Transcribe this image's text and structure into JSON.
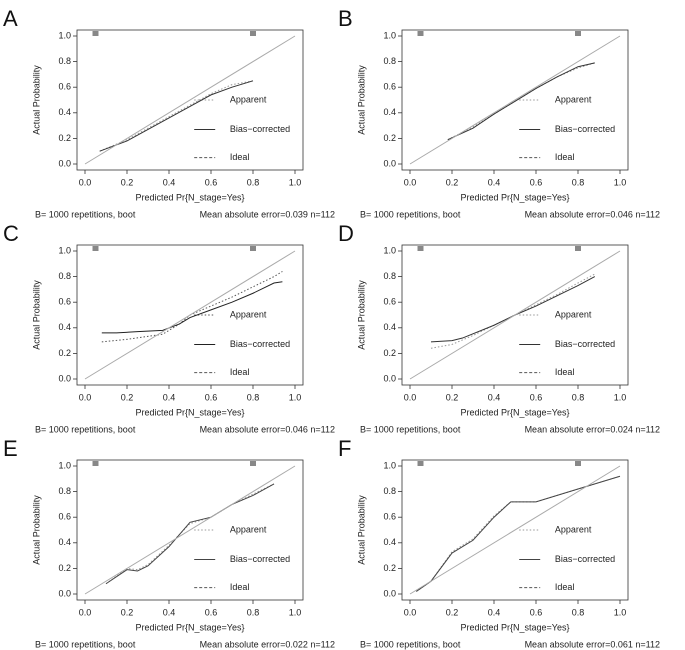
{
  "chart_data": [
    {
      "type": "line",
      "panel": "A",
      "xlabel": "Predicted Pr{N_stage=Yes}",
      "ylabel": "Actual Probability",
      "xlim": [
        0,
        1
      ],
      "ylim": [
        0,
        1
      ],
      "xticks": [
        {
          "value": 0,
          "label": "0.0"
        },
        0.2,
        0.4,
        0.6,
        0.8,
        {
          "value": 1,
          "label": "1.0"
        }
      ],
      "yticks": [
        {
          "value": 0,
          "label": "0.0"
        },
        0.2,
        0.4,
        0.6,
        0.8,
        {
          "value": 1,
          "label": "1.0"
        }
      ],
      "rug": [
        0.05,
        0.8
      ],
      "series": [
        {
          "name": "Apparent",
          "color": "#999999",
          "dash": "dotted",
          "x": [
            0.07,
            0.2,
            0.3,
            0.4,
            0.5,
            0.6,
            0.7,
            0.8
          ],
          "values": [
            0.1,
            0.19,
            0.28,
            0.37,
            0.46,
            0.55,
            0.62,
            0.65
          ]
        },
        {
          "name": "Bias−corrected",
          "color": "#333333",
          "dash": "solid",
          "x": [
            0.07,
            0.2,
            0.3,
            0.4,
            0.5,
            0.6,
            0.7,
            0.8
          ],
          "values": [
            0.1,
            0.18,
            0.27,
            0.36,
            0.45,
            0.54,
            0.6,
            0.65
          ]
        },
        {
          "name": "Ideal",
          "color": "#555555",
          "dash": "dashed",
          "x": [
            0,
            1
          ],
          "values": [
            0,
            1
          ]
        }
      ],
      "footnote_left": "B= 1000 repetitions, boot",
      "footnote_right": "Mean absolute error=0.039 n=112"
    },
    {
      "type": "line",
      "panel": "B",
      "xlabel": "Predicted Pr{N_stage=Yes}",
      "ylabel": "Actual Probability",
      "xlim": [
        0,
        1
      ],
      "ylim": [
        0,
        1
      ],
      "xticks": [
        {
          "value": 0,
          "label": "0.0"
        },
        0.2,
        0.4,
        0.6,
        0.8,
        {
          "value": 1,
          "label": "1.0"
        }
      ],
      "yticks": [
        {
          "value": 0,
          "label": "0.0"
        },
        0.2,
        0.4,
        0.6,
        0.8,
        {
          "value": 1,
          "label": "1.0"
        }
      ],
      "rug": [
        0.05,
        0.8
      ],
      "series": [
        {
          "name": "Apparent",
          "color": "#999999",
          "dash": "dotted",
          "x": [
            0.18,
            0.3,
            0.4,
            0.5,
            0.6,
            0.7,
            0.8,
            0.88
          ],
          "values": [
            0.19,
            0.29,
            0.39,
            0.49,
            0.59,
            0.68,
            0.75,
            0.79
          ]
        },
        {
          "name": "Bias−corrected",
          "color": "#333333",
          "dash": "solid",
          "x": [
            0.18,
            0.3,
            0.4,
            0.5,
            0.6,
            0.7,
            0.8,
            0.88
          ],
          "values": [
            0.19,
            0.28,
            0.39,
            0.49,
            0.59,
            0.68,
            0.76,
            0.79
          ]
        },
        {
          "name": "Ideal",
          "color": "#555555",
          "dash": "dashed",
          "x": [
            0,
            1
          ],
          "values": [
            0,
            1
          ]
        }
      ],
      "footnote_left": "B= 1000 repetitions, boot",
      "footnote_right": "Mean absolute error=0.046 n=112"
    },
    {
      "type": "line",
      "panel": "C",
      "xlabel": "Predicted Pr{N_stage=Yes}",
      "ylabel": "Actual Probability",
      "xlim": [
        0,
        1
      ],
      "ylim": [
        0,
        1
      ],
      "xticks": [
        {
          "value": 0,
          "label": "0.0"
        },
        0.2,
        0.4,
        0.6,
        0.8,
        {
          "value": 1,
          "label": "1.0"
        }
      ],
      "yticks": [
        {
          "value": 0,
          "label": "0.0"
        },
        0.2,
        0.4,
        0.6,
        0.8,
        {
          "value": 1,
          "label": "1.0"
        }
      ],
      "rug": [
        0.05,
        0.8
      ],
      "series": [
        {
          "name": "Apparent",
          "color": "#555555",
          "dash": "dotted",
          "x": [
            0.08,
            0.2,
            0.37,
            0.45,
            0.5,
            0.6,
            0.7,
            0.8,
            0.9,
            0.94
          ],
          "values": [
            0.29,
            0.31,
            0.35,
            0.43,
            0.5,
            0.57,
            0.64,
            0.72,
            0.8,
            0.84
          ]
        },
        {
          "name": "Bias−corrected",
          "color": "#222222",
          "dash": "solid",
          "x": [
            0.08,
            0.15,
            0.25,
            0.37,
            0.45,
            0.5,
            0.6,
            0.7,
            0.8,
            0.9,
            0.94
          ],
          "values": [
            0.36,
            0.36,
            0.37,
            0.38,
            0.43,
            0.48,
            0.54,
            0.6,
            0.67,
            0.75,
            0.76
          ]
        },
        {
          "name": "Ideal",
          "color": "#555555",
          "dash": "dashed",
          "x": [
            0,
            1
          ],
          "values": [
            0,
            1
          ]
        }
      ],
      "footnote_left": "B= 1000 repetitions, boot",
      "footnote_right": "Mean absolute error=0.046 n=112"
    },
    {
      "type": "line",
      "panel": "D",
      "xlabel": "Predicted Pr{N_stage=Yes}",
      "ylabel": "Actual Probability",
      "xlim": [
        0,
        1
      ],
      "ylim": [
        0,
        1
      ],
      "xticks": [
        {
          "value": 0,
          "label": "0.0"
        },
        0.2,
        0.4,
        0.6,
        0.8,
        {
          "value": 1,
          "label": "1.0"
        }
      ],
      "yticks": [
        {
          "value": 0,
          "label": "0.0"
        },
        0.2,
        0.4,
        0.6,
        0.8,
        {
          "value": 1,
          "label": "1.0"
        }
      ],
      "rug": [
        0.05,
        0.8
      ],
      "series": [
        {
          "name": "Apparent",
          "color": "#999999",
          "dash": "dotted",
          "x": [
            0.1,
            0.2,
            0.3,
            0.4,
            0.5,
            0.6,
            0.7,
            0.8,
            0.88
          ],
          "values": [
            0.24,
            0.27,
            0.34,
            0.42,
            0.5,
            0.58,
            0.66,
            0.75,
            0.82
          ]
        },
        {
          "name": "Bias−corrected",
          "color": "#333333",
          "dash": "solid",
          "x": [
            0.1,
            0.2,
            0.25,
            0.4,
            0.5,
            0.6,
            0.7,
            0.8,
            0.88
          ],
          "values": [
            0.29,
            0.3,
            0.32,
            0.42,
            0.5,
            0.57,
            0.65,
            0.73,
            0.8
          ]
        },
        {
          "name": "Ideal",
          "color": "#555555",
          "dash": "dashed",
          "x": [
            0,
            1
          ],
          "values": [
            0,
            1
          ]
        }
      ],
      "footnote_left": "B= 1000 repetitions, boot",
      "footnote_right": "Mean absolute error=0.024 n=112"
    },
    {
      "type": "line",
      "panel": "E",
      "xlabel": "Predicted Pr{N_stage=Yes}",
      "ylabel": "Actual Probability",
      "xlim": [
        0,
        1
      ],
      "ylim": [
        0,
        1
      ],
      "xticks": [
        {
          "value": 0,
          "label": "0.0"
        },
        0.2,
        0.4,
        0.6,
        0.8,
        {
          "value": 1,
          "label": "1.0"
        }
      ],
      "yticks": [
        {
          "value": 0,
          "label": "0.0"
        },
        0.2,
        0.4,
        0.6,
        0.8,
        {
          "value": 1,
          "label": "1.0"
        }
      ],
      "rug": [
        0.05,
        0.8
      ],
      "series": [
        {
          "name": "Apparent",
          "color": "#999999",
          "dash": "dotted",
          "x": [
            0.1,
            0.2,
            0.25,
            0.3,
            0.4,
            0.5,
            0.6,
            0.7,
            0.8,
            0.9
          ],
          "values": [
            0.08,
            0.2,
            0.19,
            0.23,
            0.38,
            0.55,
            0.6,
            0.7,
            0.78,
            0.86
          ]
        },
        {
          "name": "Bias−corrected",
          "color": "#444444",
          "dash": "solid",
          "x": [
            0.1,
            0.2,
            0.25,
            0.3,
            0.4,
            0.5,
            0.6,
            0.7,
            0.8,
            0.9
          ],
          "values": [
            0.08,
            0.19,
            0.18,
            0.22,
            0.37,
            0.56,
            0.6,
            0.7,
            0.77,
            0.86
          ]
        },
        {
          "name": "Ideal",
          "color": "#555555",
          "dash": "dashed",
          "x": [
            0,
            1
          ],
          "values": [
            0,
            1
          ]
        }
      ],
      "footnote_left": "B= 1000 repetitions, boot",
      "footnote_right": "Mean absolute error=0.022 n=112"
    },
    {
      "type": "line",
      "panel": "F",
      "xlabel": "Predicted Pr{N_stage=Yes}",
      "ylabel": "Actual Probability",
      "xlim": [
        0,
        1
      ],
      "ylim": [
        0,
        1
      ],
      "xticks": [
        {
          "value": 0,
          "label": "0.0"
        },
        0.2,
        0.4,
        0.6,
        0.8,
        {
          "value": 1,
          "label": "1.0"
        }
      ],
      "yticks": [
        {
          "value": 0,
          "label": "0.0"
        },
        0.2,
        0.4,
        0.6,
        0.8,
        {
          "value": 1,
          "label": "1.0"
        }
      ],
      "rug": [
        0.05,
        0.8
      ],
      "series": [
        {
          "name": "Apparent",
          "color": "#999999",
          "dash": "dotted",
          "x": [
            0.03,
            0.1,
            0.2,
            0.3,
            0.4,
            0.48,
            0.6,
            0.8,
            1.0
          ],
          "values": [
            0.02,
            0.1,
            0.33,
            0.43,
            0.61,
            0.72,
            0.72,
            0.82,
            0.92
          ]
        },
        {
          "name": "Bias−corrected",
          "color": "#444444",
          "dash": "solid",
          "x": [
            0.03,
            0.1,
            0.2,
            0.3,
            0.4,
            0.48,
            0.6,
            0.8,
            1.0
          ],
          "values": [
            0.02,
            0.1,
            0.32,
            0.42,
            0.6,
            0.72,
            0.72,
            0.82,
            0.92
          ]
        },
        {
          "name": "Ideal",
          "color": "#555555",
          "dash": "dashed",
          "x": [
            0,
            1
          ],
          "values": [
            0,
            1
          ]
        }
      ],
      "footnote_left": "B= 1000 repetitions, boot",
      "footnote_right": "Mean absolute error=0.061 n=112"
    }
  ]
}
